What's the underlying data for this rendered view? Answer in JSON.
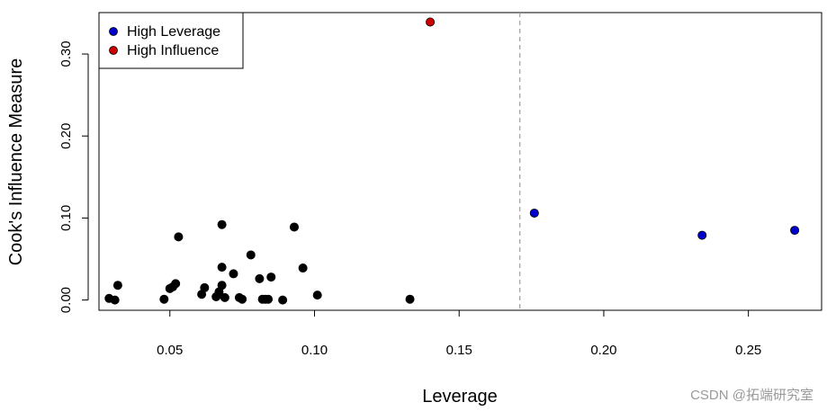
{
  "chart_data": {
    "type": "scatter",
    "title": "",
    "xlabel": "Leverage",
    "ylabel": "Cook's Influence Measure",
    "xlim": [
      0.0255,
      0.2753
    ],
    "ylim": [
      -0.0125,
      0.3505
    ],
    "x_ticks": [
      0.05,
      0.1,
      0.15,
      0.2,
      0.25
    ],
    "x_tick_labels": [
      "0.05",
      "0.10",
      "0.15",
      "0.20",
      "0.25"
    ],
    "y_ticks": [
      0.0,
      0.1,
      0.2,
      0.3
    ],
    "y_tick_labels": [
      "0.00",
      "0.10",
      "0.20",
      "0.30"
    ],
    "grid": false,
    "reference_line": {
      "axis": "x",
      "value": 0.171,
      "style": "dashed",
      "color": "#a0a0a0"
    },
    "legend": {
      "placement": "top-left",
      "entries": [
        {
          "label": "High Leverage",
          "color": "#0000cc"
        },
        {
          "label": "High Influence",
          "color": "#cc0000"
        }
      ]
    },
    "series": [
      {
        "color": "#000000",
        "points": [
          [
            0.029,
            0.002
          ],
          [
            0.031,
            0.0
          ],
          [
            0.032,
            0.018
          ],
          [
            0.048,
            0.001
          ],
          [
            0.05,
            0.014
          ],
          [
            0.051,
            0.016
          ],
          [
            0.052,
            0.02
          ],
          [
            0.053,
            0.077
          ],
          [
            0.061,
            0.007
          ],
          [
            0.062,
            0.015
          ],
          [
            0.066,
            0.004
          ],
          [
            0.067,
            0.01
          ],
          [
            0.068,
            0.018
          ],
          [
            0.068,
            0.04
          ],
          [
            0.068,
            0.092
          ],
          [
            0.069,
            0.003
          ],
          [
            0.072,
            0.032
          ],
          [
            0.074,
            0.003
          ],
          [
            0.075,
            0.001
          ],
          [
            0.078,
            0.055
          ],
          [
            0.081,
            0.026
          ],
          [
            0.082,
            0.001
          ],
          [
            0.083,
            0.001
          ],
          [
            0.084,
            0.001
          ],
          [
            0.085,
            0.028
          ],
          [
            0.089,
            0.0
          ],
          [
            0.093,
            0.089
          ],
          [
            0.096,
            0.039
          ],
          [
            0.101,
            0.006
          ],
          [
            0.133,
            0.001
          ]
        ]
      },
      {
        "name": "High Leverage",
        "color": "#0000cc",
        "points": [
          [
            0.176,
            0.106
          ],
          [
            0.234,
            0.079
          ],
          [
            0.266,
            0.085
          ]
        ]
      },
      {
        "name": "High Influence",
        "color": "#cc0000",
        "points": [
          [
            0.14,
            0.339
          ]
        ]
      }
    ]
  },
  "watermark": "CSDN @拓端研究室"
}
